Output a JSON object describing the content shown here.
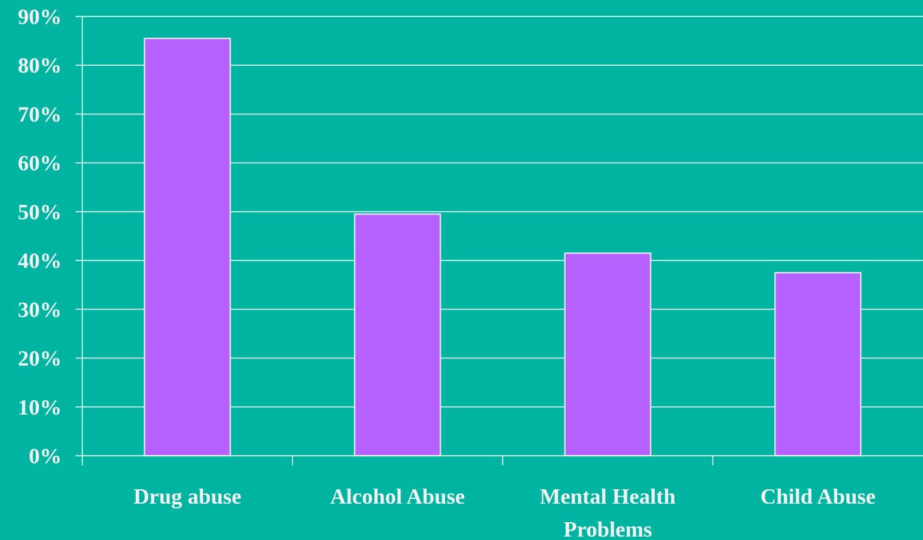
{
  "chart_data": {
    "type": "bar",
    "categories": [
      "Drug abuse",
      "Alcohol Abuse",
      "Mental Health Problems",
      "Child Abuse"
    ],
    "category_lines": [
      [
        "Drug abuse"
      ],
      [
        "Alcohol Abuse"
      ],
      [
        "Mental Health",
        "Problems"
      ],
      [
        "Child Abuse"
      ]
    ],
    "values": [
      85.5,
      49.5,
      41.5,
      37.5
    ],
    "y_ticks": [
      "0%",
      "10%",
      "20%",
      "30%",
      "40%",
      "50%",
      "60%",
      "70%",
      "80%",
      "90%"
    ],
    "ylim": [
      0,
      90
    ],
    "grid": true,
    "title": "",
    "xlabel": "",
    "ylabel": "",
    "colors": {
      "background": "#00b4a2",
      "bar_fill": "#b660fe",
      "bar_stroke": "#e8e8ff",
      "gridline": "#e6f7f4",
      "text": "#f2f2f2"
    }
  }
}
